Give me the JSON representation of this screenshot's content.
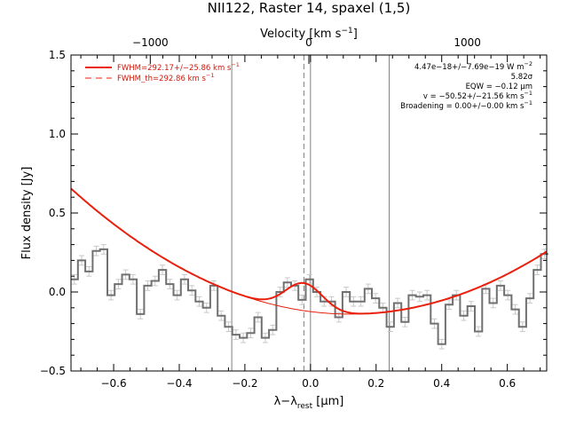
{
  "chart_data": {
    "type": "line",
    "title": "NII122, Raster 14, spaxel (1,5)",
    "xlabel": "λ−λ",
    "xlabel_sub": "rest",
    "xlabel_unit": " [μm]",
    "ylabel": "Flux density [Jy]",
    "top_axis": {
      "label_main": "Velocity [km s",
      "label_sup": "−1",
      "label_close": "]",
      "range": [
        -1500,
        1500
      ],
      "ticks": [
        -1000,
        0,
        1000
      ],
      "tick_labels": [
        "−1000",
        "0",
        "1000"
      ]
    },
    "xlim": [
      -0.73,
      0.72
    ],
    "ylim": [
      -0.5,
      1.5
    ],
    "x_ticks": [
      -0.6,
      -0.4,
      -0.2,
      0.0,
      0.2,
      0.4,
      0.6
    ],
    "x_tick_labels": [
      "−0.6",
      "−0.4",
      "−0.2",
      "0.0",
      "0.2",
      "0.4",
      "0.6"
    ],
    "y_ticks": [
      -0.5,
      0.0,
      0.5,
      1.0,
      1.5
    ],
    "y_tick_labels": [
      "−0.5",
      "0.0",
      "0.5",
      "1.0",
      "1.5"
    ],
    "vertical_lines": [
      -0.24,
      0.0,
      0.24
    ],
    "dashed_line": -0.02,
    "legend": {
      "placement": "top-left",
      "entries": [
        {
          "label_main": "FWHM=292.17+/−25.86 km s",
          "label_sup": "−1"
        },
        {
          "label_main": "FWHM_th=292.86 km s",
          "label_sup": "−1"
        }
      ]
    },
    "annotations": [
      {
        "main": "4.47e−18+/−7.69e−19 W m",
        "sup": "−2"
      },
      {
        "main": "5.82σ",
        "sup": ""
      },
      {
        "main": "EQW = −0.12 μm",
        "sup": ""
      },
      {
        "main": "v = −50.52+/−21.56 km s",
        "sup": "−1"
      },
      {
        "main": "Broadening = 0.00+/−0.00 km s",
        "sup": "−1"
      }
    ],
    "series": [
      {
        "role": "spectrum",
        "bin_width": 0.0224,
        "x": [
          -0.72,
          -0.6976,
          -0.6752,
          -0.6528,
          -0.6304,
          -0.608,
          -0.5856,
          -0.5632,
          -0.5408,
          -0.5184,
          -0.496,
          -0.4736,
          -0.4512,
          -0.4288,
          -0.4064,
          -0.384,
          -0.3616,
          -0.3392,
          -0.3168,
          -0.2944,
          -0.272,
          -0.2496,
          -0.2272,
          -0.2048,
          -0.1824,
          -0.16,
          -0.1376,
          -0.1152,
          -0.0928,
          -0.0704,
          -0.048,
          -0.0256,
          -0.0032,
          0.0192,
          0.0416,
          0.064,
          0.0864,
          0.1088,
          0.1312,
          0.1536,
          0.176,
          0.1984,
          0.2208,
          0.2432,
          0.2656,
          0.288,
          0.3104,
          0.3328,
          0.3552,
          0.3776,
          0.4,
          0.4224,
          0.4448,
          0.4672,
          0.4896,
          0.512,
          0.5344,
          0.5568,
          0.5792,
          0.6016,
          0.624,
          0.6464,
          0.6688,
          0.6912,
          0.7136
        ],
        "y": [
          0.08,
          0.2,
          0.13,
          0.26,
          0.27,
          -0.02,
          0.05,
          0.11,
          0.08,
          -0.14,
          0.04,
          0.07,
          0.14,
          0.05,
          -0.02,
          0.08,
          0.01,
          -0.06,
          -0.1,
          0.04,
          -0.15,
          -0.22,
          -0.27,
          -0.29,
          -0.26,
          -0.16,
          -0.29,
          -0.24,
          0.0,
          0.06,
          0.04,
          -0.05,
          0.08,
          0.0,
          -0.06,
          -0.06,
          -0.16,
          0.0,
          -0.06,
          -0.06,
          0.02,
          -0.04,
          -0.1,
          -0.22,
          -0.07,
          -0.19,
          -0.02,
          -0.03,
          -0.02,
          -0.2,
          -0.33,
          -0.08,
          -0.02,
          -0.15,
          -0.09,
          -0.25,
          0.02,
          -0.07,
          0.04,
          -0.02,
          -0.11,
          -0.22,
          -0.04,
          0.14,
          0.24
        ],
        "yerr": 0.03
      },
      {
        "role": "fit",
        "continuum": {
          "a": -0.14,
          "b": 1.1,
          "c": 0.12
        },
        "gaussian": {
          "center": -0.02,
          "amplitude": 0.175,
          "sigma": 0.057
        }
      }
    ]
  }
}
